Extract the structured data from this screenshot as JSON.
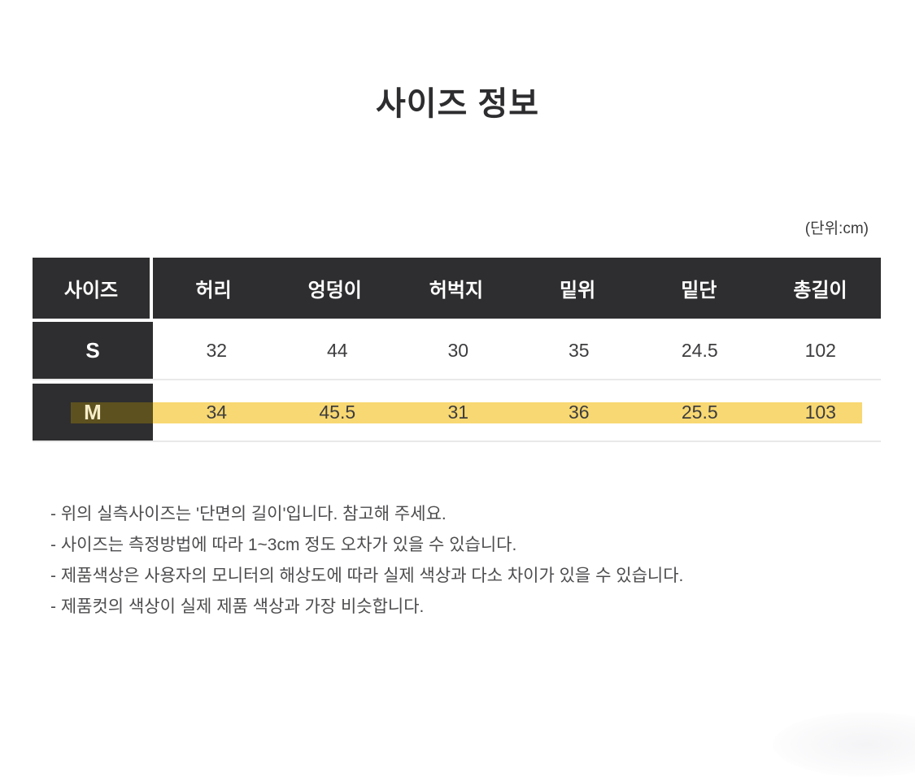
{
  "page": {
    "title": "사이즈 정보",
    "unit_label": "(단위:cm)"
  },
  "size_table": {
    "columns": [
      "사이즈",
      "허리",
      "엉덩이",
      "허벅지",
      "밑위",
      "밑단",
      "총길이"
    ],
    "rows": [
      {
        "size": "S",
        "highlighted": false,
        "values": [
          "32",
          "44",
          "30",
          "35",
          "24.5",
          "102"
        ]
      },
      {
        "size": "M",
        "highlighted": true,
        "values": [
          "34",
          "45.5",
          "31",
          "36",
          "25.5",
          "103"
        ]
      }
    ]
  },
  "notes": [
    "- 위의 실측사이즈는 '단면의 길이'입니다. 참고해 주세요.",
    "- 사이즈는 측정방법에 따라 1~3cm 정도 오차가 있을 수 있습니다.",
    "- 제품색상은 사용자의 모니터의 해상도에 따라 실제 색상과 다소 차이가 있을 수 있습니다.",
    "- 제품컷의 색상이 실제 제품 색상과 가장 비슷합니다."
  ],
  "colors": {
    "header_bg": "#2e2e30",
    "highlight_yellow": "#f8d872",
    "highlight_on_dark": "#5d511f",
    "row_border": "#e9e9e9"
  }
}
